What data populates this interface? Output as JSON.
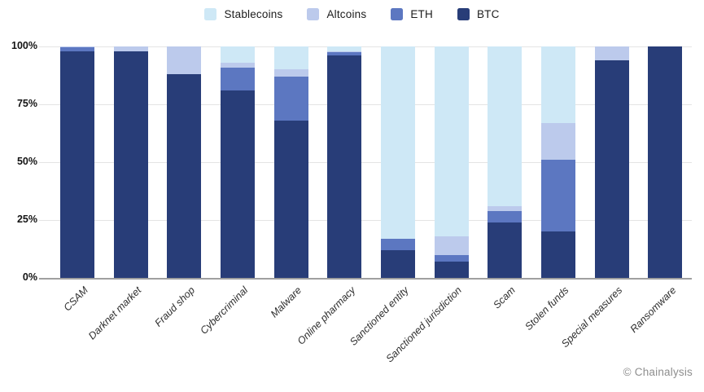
{
  "legend": {
    "items": [
      {
        "label": "Stablecoins",
        "color": "#cee8f6"
      },
      {
        "label": "Altcoins",
        "color": "#bccaec"
      },
      {
        "label": "ETH",
        "color": "#5c77c1"
      },
      {
        "label": "BTC",
        "color": "#283d78"
      }
    ]
  },
  "chart_data": {
    "type": "bar",
    "stacked": true,
    "grid": true,
    "legend_position": "top",
    "ylim": [
      0,
      100
    ],
    "y_ticks": [
      "100%",
      "75%",
      "50%",
      "25%",
      "0%"
    ],
    "y_tick_values": [
      100,
      75,
      50,
      25,
      0
    ],
    "categories": [
      "CSAM",
      "Darknet market",
      "Fraud shop",
      "Cybercriminal",
      "Malware",
      "Online pharmacy",
      "Sanctioned entity",
      "Sanctioned jurisdiction",
      "Scam",
      "Stolen funds",
      "Special measures",
      "Ransomware"
    ],
    "series": [
      {
        "name": "BTC",
        "color": "#283d78",
        "values": [
          98,
          98,
          88,
          81,
          68,
          96,
          12,
          7,
          24,
          20,
          94,
          100
        ]
      },
      {
        "name": "ETH",
        "color": "#5c77c1",
        "values": [
          1.5,
          0,
          0,
          10,
          19,
          1.5,
          5,
          3,
          5,
          31,
          0,
          0
        ]
      },
      {
        "name": "Altcoins",
        "color": "#bccaec",
        "values": [
          0.5,
          2,
          12,
          2,
          3,
          0.5,
          0,
          8,
          2,
          16,
          6,
          0
        ]
      },
      {
        "name": "Stablecoins",
        "color": "#cee8f6",
        "values": [
          0,
          0,
          0,
          7,
          10,
          2,
          83,
          82,
          69,
          33,
          0,
          0
        ]
      }
    ]
  },
  "footer": {
    "credit": "© Chainalysis"
  }
}
